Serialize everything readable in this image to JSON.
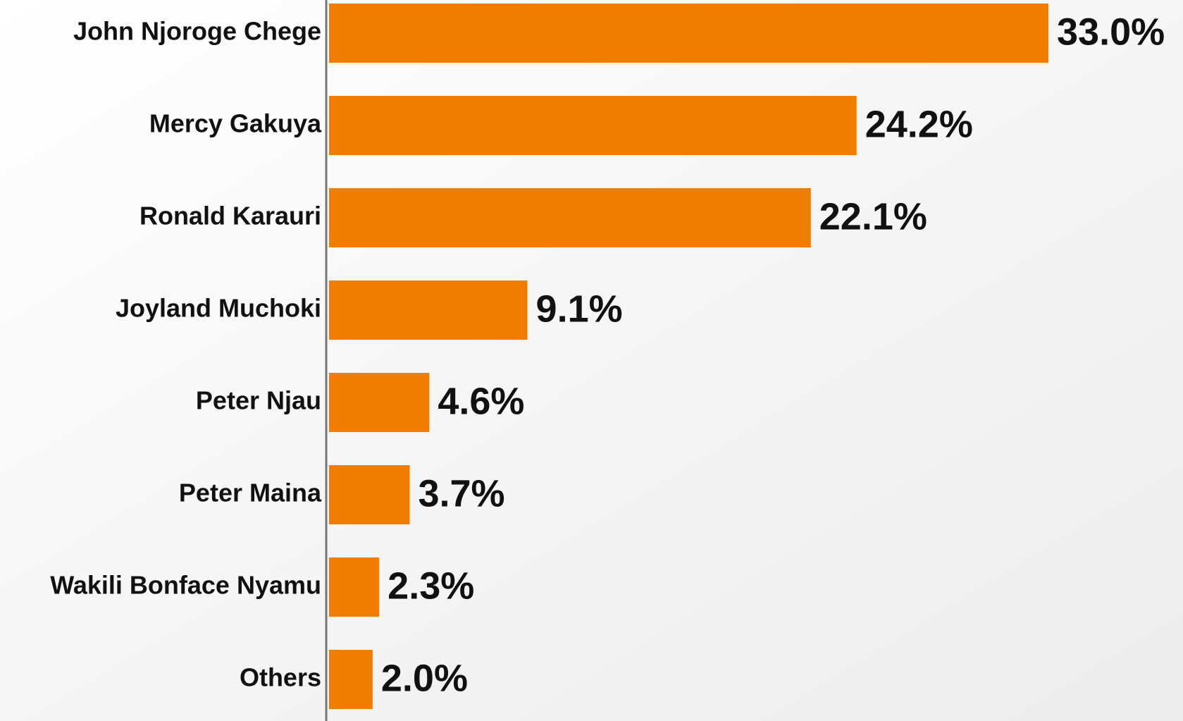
{
  "chart_data": {
    "type": "bar",
    "orientation": "horizontal",
    "categories": [
      "John Njoroge Chege",
      "Mercy Gakuya",
      "Ronald Karauri",
      "Joyland Muchoki",
      "Peter Njau",
      "Peter Maina",
      "Wakili Bonface Nyamu",
      "Others"
    ],
    "values": [
      33.0,
      24.2,
      22.1,
      9.1,
      4.6,
      3.7,
      2.3,
      2.0
    ],
    "value_labels": [
      "33.0%",
      "24.2%",
      "22.1%",
      "9.1%",
      "4.6%",
      "3.7%",
      "2.3%",
      "2.0%"
    ],
    "color": "#f07c00"
  }
}
